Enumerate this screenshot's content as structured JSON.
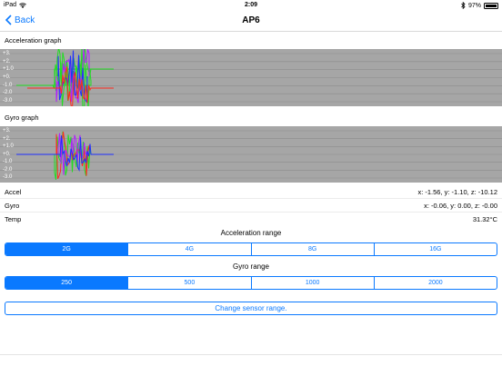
{
  "status_bar": {
    "device": "iPad",
    "time": "2:09",
    "battery": "97%",
    "battery_level": 0.97
  },
  "nav": {
    "back_label": "Back",
    "title": "AP6"
  },
  "acceleration_graph": {
    "label": "Acceleration graph",
    "ticks": [
      "+3.",
      "+2.",
      "+1.0",
      "+0.",
      "-1.0",
      "-2.0",
      "-3.0"
    ]
  },
  "gyro_graph": {
    "label": "Gyro graph",
    "ticks": [
      "+3.",
      "+2.",
      "+1.0",
      "+0.",
      "-1.0",
      "-2.0",
      "-3.0"
    ]
  },
  "readings": {
    "accel_label": "Accel",
    "accel_value": "x: -1.56, y: -1.10, z: -10.12",
    "gyro_label": "Gyro",
    "gyro_value": "x: -0.06, y: 0.00, z: -0.00",
    "temp_label": "Temp",
    "temp_value": "31.32°C"
  },
  "acceleration_range": {
    "label": "Acceleration range",
    "options": [
      "2G",
      "4G",
      "8G",
      "16G"
    ],
    "selected": "2G"
  },
  "gyro_range": {
    "label": "Gyro range",
    "options": [
      "250",
      "500",
      "1000",
      "2000"
    ],
    "selected": "250"
  },
  "change_button_label": "Change sensor range.",
  "colors": {
    "accent": "#0a79ff",
    "graph_background": "#a6a6a6",
    "x_series": "#ff2a1f",
    "y_series": "#22dd22",
    "z_series": "#1f2fff",
    "extra_series": "#b21fff"
  }
}
